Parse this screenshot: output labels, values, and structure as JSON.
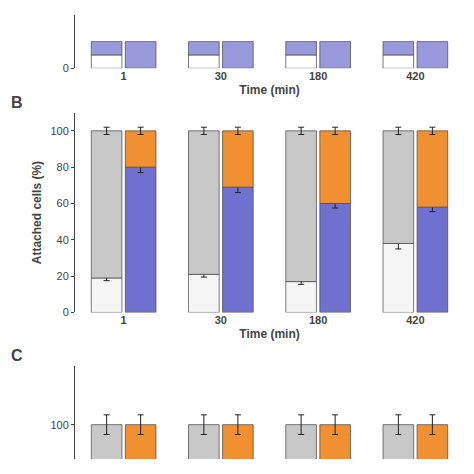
{
  "chart_data": [
    {
      "type": "bar",
      "stacked": true,
      "categories": [
        "1",
        "30",
        "180",
        "420"
      ],
      "xlabel": "Time (min)",
      "ylim": [
        0,
        2
      ],
      "yticks": [
        0
      ],
      "grid": false,
      "series": [
        {
          "segments": [
            {
              "color": "#ffffff",
              "values": [
                0.5,
                0.5,
                0.5,
                0.5
              ]
            },
            {
              "color": "#9999dd",
              "values": [
                0.5,
                0.5,
                0.5,
                0.5
              ]
            }
          ]
        },
        {
          "segments": [
            {
              "color": "#9999dd",
              "values": [
                1,
                1,
                1,
                1
              ]
            }
          ]
        }
      ]
    },
    {
      "type": "bar",
      "title": "B",
      "stacked": true,
      "categories": [
        "1",
        "30",
        "180",
        "420"
      ],
      "xlabel": "Time (min)",
      "ylabel": "Attached cells (%)",
      "ylim": [
        0,
        110
      ],
      "yticks": [
        0,
        20,
        40,
        60,
        80,
        100
      ],
      "grid": false,
      "series": [
        {
          "segments": [
            {
              "color": "#f5f5f5",
              "values": [
                19,
                21,
                17,
                38
              ],
              "errors": [
                1.5,
                1.5,
                1.5,
                3
              ]
            },
            {
              "color": "#c8c8c8",
              "values": [
                81,
                79,
                83,
                62
              ],
              "errors": [
                2,
                2,
                2,
                2
              ]
            }
          ]
        },
        {
          "segments": [
            {
              "color": "#7070d0",
              "values": [
                80,
                69,
                60,
                58
              ],
              "errors": [
                3,
                3,
                2.5,
                2.5
              ]
            },
            {
              "color": "#f09030",
              "values": [
                20,
                31,
                40,
                42
              ],
              "errors": [
                2,
                2,
                2,
                2
              ]
            }
          ]
        }
      ]
    },
    {
      "type": "bar",
      "title": "C",
      "categories": [
        null,
        null,
        null,
        null
      ],
      "ylim": [
        93,
        112
      ],
      "yticks": [
        100
      ],
      "grid": false,
      "tick_labels": "y",
      "series": [
        {
          "color": "#c8c8c8",
          "values": [
            100,
            100,
            100,
            100
          ],
          "errors": [
            2,
            2,
            2,
            2
          ]
        },
        {
          "color": "#f09030",
          "values": [
            100,
            100,
            100,
            100
          ],
          "errors": [
            2,
            2,
            2,
            2
          ]
        }
      ]
    }
  ]
}
